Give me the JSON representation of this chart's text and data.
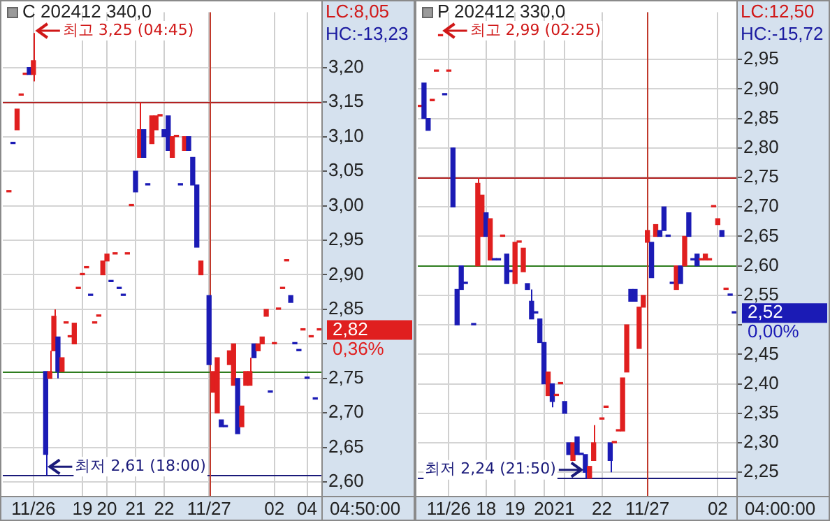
{
  "chart_data": [
    {
      "type": "candlestick",
      "title": "C 202412 340,0",
      "grid": true,
      "categories": [
        null,
        null,
        null,
        null,
        null,
        null,
        null,
        "11/26",
        null,
        null,
        null,
        null,
        null,
        null,
        null,
        null,
        null,
        null,
        null,
        "19",
        null,
        null,
        null,
        null,
        null,
        "20",
        null,
        null,
        null,
        null,
        null,
        null,
        "21",
        null,
        null,
        null,
        null,
        null,
        null,
        "22",
        null,
        null,
        null,
        null,
        null,
        null,
        null,
        null,
        null,
        null,
        "11/27",
        null,
        null,
        null,
        null,
        null,
        null,
        null,
        null,
        null,
        null,
        null,
        null,
        null,
        null,
        null,
        "02",
        null,
        null,
        null,
        null,
        null,
        null,
        null,
        "04",
        null,
        null,
        null
      ],
      "ohlc": [
        null,
        [
          3.02,
          3.02,
          3.02,
          3.02
        ],
        [
          3.09,
          3.09,
          3.09,
          3.09
        ],
        [
          3.11,
          3.14,
          3.11,
          3.14
        ],
        [
          3.16,
          3.16,
          3.16,
          3.16
        ],
        [
          3.19,
          3.19,
          3.19,
          3.19
        ],
        [
          3.2,
          3.2,
          3.19,
          3.19
        ],
        [
          3.19,
          3.25,
          3.18,
          3.21
        ],
        null,
        null,
        [
          2.76,
          2.76,
          2.61,
          2.64
        ],
        [
          2.75,
          2.79,
          2.75,
          2.76
        ],
        [
          2.79,
          2.85,
          2.79,
          2.84
        ],
        [
          2.81,
          2.81,
          2.75,
          2.76
        ],
        [
          2.76,
          2.78,
          2.76,
          2.78
        ],
        [
          2.83,
          2.83,
          2.83,
          2.83
        ],
        [
          2.81,
          2.81,
          2.81,
          2.81
        ],
        [
          2.8,
          2.83,
          2.8,
          2.83
        ],
        [
          2.88,
          2.88,
          2.88,
          2.88
        ],
        [
          2.9,
          2.9,
          2.9,
          2.9
        ],
        [
          2.91,
          2.91,
          2.91,
          2.91
        ],
        [
          2.87,
          2.87,
          2.87,
          2.87
        ],
        [
          2.83,
          2.83,
          2.83,
          2.83
        ],
        [
          2.84,
          2.84,
          2.84,
          2.84
        ],
        [
          2.9,
          2.92,
          2.9,
          2.92
        ],
        [
          2.92,
          2.93,
          2.92,
          2.93
        ],
        [
          2.89,
          2.89,
          2.89,
          2.89
        ],
        [
          2.93,
          2.93,
          2.93,
          2.93
        ],
        [
          2.88,
          2.88,
          2.88,
          2.88
        ],
        [
          2.87,
          2.87,
          2.87,
          2.87
        ],
        [
          2.93,
          2.93,
          2.93,
          2.93
        ],
        [
          3.0,
          3.0,
          3.0,
          3.0
        ],
        [
          3.05,
          3.05,
          3.02,
          3.02
        ],
        [
          3.07,
          3.15,
          3.07,
          3.11
        ],
        [
          3.11,
          3.11,
          3.07,
          3.07
        ],
        [
          3.03,
          3.03,
          3.03,
          3.03
        ],
        [
          3.09,
          3.13,
          3.09,
          3.13
        ],
        [
          3.11,
          3.13,
          3.11,
          3.13
        ],
        [
          3.13,
          3.13,
          3.13,
          3.13
        ],
        [
          3.11,
          3.11,
          3.1,
          3.1
        ],
        [
          3.13,
          3.13,
          3.08,
          3.08
        ],
        [
          3.07,
          3.1,
          3.07,
          3.1
        ],
        [
          3.1,
          3.1,
          3.1,
          3.1
        ],
        [
          3.03,
          3.03,
          3.03,
          3.03
        ],
        [
          3.08,
          3.1,
          3.08,
          3.1
        ],
        [
          3.1,
          3.1,
          3.08,
          3.08
        ],
        [
          3.07,
          3.07,
          3.03,
          3.03
        ],
        [
          3.03,
          3.03,
          2.94,
          2.94
        ],
        [
          2.9,
          2.92,
          2.9,
          2.92
        ],
        null,
        [
          2.87,
          2.87,
          2.77,
          2.77
        ],
        [
          2.73,
          2.76,
          2.73,
          2.76
        ],
        [
          2.7,
          2.78,
          2.7,
          2.78
        ],
        [
          2.69,
          2.69,
          2.68,
          2.68
        ],
        [
          2.68,
          2.68,
          2.68,
          2.68
        ],
        [
          2.77,
          2.79,
          2.77,
          2.79
        ],
        [
          2.74,
          2.8,
          2.74,
          2.8
        ],
        [
          2.75,
          2.75,
          2.67,
          2.67
        ],
        [
          2.68,
          2.71,
          2.68,
          2.71
        ],
        [
          2.74,
          2.76,
          2.74,
          2.76
        ],
        [
          2.74,
          2.78,
          2.74,
          2.76
        ],
        [
          2.8,
          2.8,
          2.78,
          2.78
        ],
        [
          2.79,
          2.8,
          2.79,
          2.8
        ],
        [
          2.8,
          2.81,
          2.8,
          2.81
        ],
        [
          2.84,
          2.85,
          2.84,
          2.85
        ],
        [
          2.73,
          2.73,
          2.73,
          2.73
        ],
        [
          2.8,
          2.8,
          2.8,
          2.8
        ],
        [
          2.85,
          2.85,
          2.85,
          2.85
        ],
        [
          2.88,
          2.88,
          2.88,
          2.88
        ],
        [
          2.92,
          2.92,
          2.92,
          2.92
        ],
        [
          2.87,
          2.87,
          2.86,
          2.86
        ],
        [
          2.8,
          2.8,
          2.8,
          2.8
        ],
        [
          2.79,
          2.79,
          2.79,
          2.79
        ],
        [
          2.82,
          2.82,
          2.82,
          2.82
        ],
        [
          2.75,
          2.75,
          2.75,
          2.75
        ],
        [
          2.81,
          2.81,
          2.81,
          2.81
        ],
        [
          2.72,
          2.72,
          2.72,
          2.72
        ],
        [
          2.82,
          2.82,
          2.82,
          2.82
        ]
      ],
      "colors": [
        null,
        "#e01f1f",
        "#1b1bb5",
        "#e01f1f",
        "#e01f1f",
        "#e01f1f",
        "#1b1bb5",
        "#e01f1f",
        null,
        null,
        "#1b1bb5",
        "#e01f1f",
        "#e01f1f",
        "#1b1bb5",
        "#e01f1f",
        "#e01f1f",
        "#e01f1f",
        "#e01f1f",
        "#e01f1f",
        "#e01f1f",
        "#e01f1f",
        "#1b1bb5",
        "#e01f1f",
        "#e01f1f",
        "#e01f1f",
        "#e01f1f",
        "#1b1bb5",
        "#e01f1f",
        "#1b1bb5",
        "#1b1bb5",
        "#e01f1f",
        "#e01f1f",
        "#1b1bb5",
        "#e01f1f",
        "#1b1bb5",
        "#1b1bb5",
        "#e01f1f",
        "#e01f1f",
        "#e01f1f",
        "#1b1bb5",
        "#1b1bb5",
        "#e01f1f",
        "#e01f1f",
        "#1b1bb5",
        "#e01f1f",
        "#1b1bb5",
        "#1b1bb5",
        "#1b1bb5",
        "#e01f1f",
        null,
        "#1b1bb5",
        "#e01f1f",
        "#e01f1f",
        "#1b1bb5",
        "#1b1bb5",
        "#e01f1f",
        "#e01f1f",
        "#1b1bb5",
        "#e01f1f",
        "#e01f1f",
        "#e01f1f",
        "#1b1bb5",
        "#e01f1f",
        "#e01f1f",
        "#e01f1f",
        "#1b1bb5",
        "#e01f1f",
        "#e01f1f",
        "#e01f1f",
        "#e01f1f",
        "#1b1bb5",
        "#1b1bb5",
        "#1b1bb5",
        "#e01f1f",
        "#1b1bb5",
        "#e01f1f",
        "#1b1bb5",
        "#e01f1f"
      ],
      "ylim": [
        2.58,
        3.28
      ],
      "yticks": [
        {
          "value": 2.6,
          "label": "2,60"
        },
        {
          "value": 2.65,
          "label": "2,65"
        },
        {
          "value": 2.7,
          "label": "2,70"
        },
        {
          "value": 2.75,
          "label": "2,75"
        },
        {
          "value": 2.8,
          "label": null
        },
        {
          "value": 2.85,
          "label": "2,85"
        },
        {
          "value": 2.9,
          "label": "2,90"
        },
        {
          "value": 2.95,
          "label": "2,95"
        },
        {
          "value": 3.0,
          "label": "3,00"
        },
        {
          "value": 3.05,
          "label": "3,05"
        },
        {
          "value": 3.1,
          "label": "3,10"
        },
        {
          "value": 3.15,
          "label": "3,15"
        },
        {
          "value": 3.2,
          "label": "3,20"
        }
      ],
      "ref_lines": [
        {
          "axis": "y",
          "value": 3.15,
          "color": "#b22222"
        },
        {
          "axis": "y",
          "value": 2.76,
          "color": "#2e7d1e"
        },
        {
          "axis": "y",
          "value": 2.61,
          "color": "#1a1a7a"
        },
        {
          "axis": "x",
          "value": "11/27",
          "color": "#c0392b"
        }
      ],
      "annotations": [
        "최고 3,25 (04:45)",
        "최저 2,61 (18:00)",
        "LC:8,05",
        "HC:-13,23",
        "2,82",
        "0,36%",
        "04:50:00"
      ]
    },
    {
      "type": "candlestick",
      "title": "P 202412 330,0",
      "grid": true,
      "categories": [
        null,
        null,
        null,
        null,
        null,
        null,
        null,
        "11/26",
        null,
        null,
        null,
        null,
        null,
        null,
        null,
        null,
        "18",
        null,
        null,
        null,
        null,
        null,
        null,
        "19",
        null,
        null,
        null,
        null,
        null,
        null,
        "20",
        null,
        null,
        null,
        null,
        "21",
        null,
        null,
        null,
        null,
        null,
        null,
        null,
        null,
        "22",
        null,
        null,
        null,
        null,
        null,
        null,
        null,
        null,
        null,
        null,
        "11/27",
        null,
        null,
        null,
        null,
        null,
        null,
        null,
        null,
        null,
        null,
        null,
        null,
        null,
        null,
        null,
        null,
        "02",
        null,
        null,
        null,
        null
      ],
      "ohlc": [
        [
          2.87,
          2.87,
          2.87,
          2.87
        ],
        [
          2.91,
          2.91,
          2.85,
          2.85
        ],
        [
          2.85,
          2.85,
          2.83,
          2.83
        ],
        [
          2.88,
          2.88,
          2.88,
          2.88
        ],
        [
          2.93,
          2.93,
          2.93,
          2.93
        ],
        [
          2.99,
          2.99,
          2.99,
          2.99
        ],
        [
          2.89,
          2.89,
          2.89,
          2.89
        ],
        [
          2.93,
          2.93,
          2.93,
          2.93
        ],
        [
          2.8,
          2.8,
          2.7,
          2.7
        ],
        [
          2.56,
          2.56,
          2.5,
          2.5
        ],
        [
          2.6,
          2.6,
          2.56,
          2.56
        ],
        [
          2.57,
          2.57,
          2.57,
          2.57
        ],
        null,
        [
          2.5,
          2.5,
          2.5,
          2.5
        ],
        [
          2.6,
          2.75,
          2.6,
          2.74
        ],
        [
          2.65,
          2.72,
          2.65,
          2.72
        ],
        [
          2.69,
          2.69,
          2.65,
          2.65
        ],
        [
          2.61,
          2.68,
          2.61,
          2.68
        ],
        [
          2.61,
          2.61,
          2.61,
          2.61
        ],
        [
          2.61,
          2.61,
          2.61,
          2.61
        ],
        [
          2.65,
          2.65,
          2.65,
          2.65
        ],
        [
          2.62,
          2.62,
          2.57,
          2.57
        ],
        [
          2.59,
          2.59,
          2.59,
          2.59
        ],
        [
          2.57,
          2.64,
          2.57,
          2.64
        ],
        [
          2.64,
          2.64,
          2.64,
          2.64
        ],
        [
          2.59,
          2.63,
          2.59,
          2.63
        ],
        [
          2.57,
          2.57,
          2.56,
          2.56
        ],
        [
          2.54,
          2.56,
          2.51,
          2.51
        ],
        [
          2.52,
          2.52,
          2.52,
          2.52
        ],
        [
          2.51,
          2.51,
          2.47,
          2.47
        ],
        [
          2.47,
          2.47,
          2.4,
          2.4
        ],
        [
          2.38,
          2.42,
          2.38,
          2.42
        ],
        [
          2.4,
          2.4,
          2.36,
          2.37
        ],
        [
          2.38,
          2.38,
          2.38,
          2.38
        ],
        [
          2.4,
          2.4,
          2.4,
          2.4
        ],
        [
          2.37,
          2.37,
          2.35,
          2.35
        ],
        [
          2.3,
          2.3,
          2.28,
          2.28
        ],
        [
          2.27,
          2.3,
          2.27,
          2.3
        ],
        [
          2.31,
          2.31,
          2.28,
          2.28
        ],
        [
          2.28,
          2.28,
          2.28,
          2.28
        ],
        [
          2.28,
          2.28,
          2.24,
          2.25
        ],
        [
          2.24,
          2.26,
          2.24,
          2.26
        ],
        [
          2.27,
          2.33,
          2.27,
          2.3
        ],
        null,
        [
          2.34,
          2.34,
          2.34,
          2.34
        ],
        [
          2.36,
          2.36,
          2.36,
          2.36
        ],
        [
          2.3,
          2.3,
          2.25,
          2.27
        ],
        [
          2.3,
          2.3,
          2.3,
          2.3
        ],
        [
          2.32,
          2.32,
          2.32,
          2.32
        ],
        [
          2.32,
          2.41,
          2.32,
          2.41
        ],
        [
          2.42,
          2.5,
          2.42,
          2.5
        ],
        [
          2.56,
          2.56,
          2.54,
          2.54
        ],
        [
          2.56,
          2.56,
          2.54,
          2.54
        ],
        [
          2.46,
          2.53,
          2.46,
          2.53
        ],
        [
          2.53,
          2.55,
          2.53,
          2.55
        ],
        [
          2.64,
          2.66,
          2.64,
          2.66
        ],
        [
          2.64,
          2.64,
          2.58,
          2.58
        ],
        [
          2.65,
          2.67,
          2.65,
          2.67
        ],
        [
          2.66,
          2.66,
          2.65,
          2.65
        ],
        [
          2.7,
          2.7,
          2.66,
          2.66
        ],
        [
          2.65,
          2.65,
          2.65,
          2.65
        ],
        [
          2.57,
          2.57,
          2.57,
          2.57
        ],
        [
          2.56,
          2.6,
          2.56,
          2.6
        ],
        [
          2.6,
          2.6,
          2.57,
          2.57
        ],
        [
          2.6,
          2.65,
          2.6,
          2.65
        ],
        [
          2.69,
          2.69,
          2.65,
          2.65
        ],
        [
          2.61,
          2.61,
          2.61,
          2.61
        ],
        [
          2.62,
          2.62,
          2.6,
          2.6
        ],
        [
          2.61,
          2.61,
          2.61,
          2.61
        ],
        [
          2.61,
          2.62,
          2.61,
          2.62
        ],
        [
          2.61,
          2.61,
          2.61,
          2.61
        ],
        [
          2.7,
          2.7,
          2.7,
          2.7
        ],
        [
          2.67,
          2.68,
          2.67,
          2.68
        ],
        [
          2.66,
          2.66,
          2.65,
          2.65
        ],
        [
          2.56,
          2.56,
          2.56,
          2.56
        ],
        [
          2.55,
          2.55,
          2.55,
          2.55
        ],
        [
          2.52,
          2.52,
          2.52,
          2.52
        ]
      ],
      "colors": [
        "#e01f1f",
        "#1b1bb5",
        "#1b1bb5",
        "#e01f1f",
        "#e01f1f",
        "#e01f1f",
        "#1b1bb5",
        "#e01f1f",
        "#1b1bb5",
        "#1b1bb5",
        "#1b1bb5",
        "#1b1bb5",
        null,
        "#1b1bb5",
        "#e01f1f",
        "#e01f1f",
        "#1b1bb5",
        "#e01f1f",
        "#1b1bb5",
        "#1b1bb5",
        "#e01f1f",
        "#1b1bb5",
        "#1b1bb5",
        "#e01f1f",
        "#e01f1f",
        "#e01f1f",
        "#1b1bb5",
        "#1b1bb5",
        "#1b1bb5",
        "#1b1bb5",
        "#1b1bb5",
        "#e01f1f",
        "#1b1bb5",
        "#e01f1f",
        "#e01f1f",
        "#1b1bb5",
        "#1b1bb5",
        "#e01f1f",
        "#1b1bb5",
        "#1b1bb5",
        "#1b1bb5",
        "#e01f1f",
        "#e01f1f",
        null,
        "#e01f1f",
        "#e01f1f",
        "#1b1bb5",
        "#e01f1f",
        "#e01f1f",
        "#e01f1f",
        "#e01f1f",
        "#1b1bb5",
        "#1b1bb5",
        "#e01f1f",
        "#e01f1f",
        "#e01f1f",
        "#1b1bb5",
        "#e01f1f",
        "#1b1bb5",
        "#1b1bb5",
        "#1b1bb5",
        "#1b1bb5",
        "#e01f1f",
        "#1b1bb5",
        "#e01f1f",
        "#1b1bb5",
        "#1b1bb5",
        "#1b1bb5",
        "#e01f1f",
        "#e01f1f",
        "#e01f1f",
        "#e01f1f",
        "#e01f1f",
        "#1b1bb5",
        "#e01f1f",
        "#1b1bb5",
        "#1b1bb5"
      ],
      "ylim": [
        2.21,
        3.03
      ],
      "yticks": [
        {
          "value": 2.25,
          "label": "2,25"
        },
        {
          "value": 2.3,
          "label": "2,30"
        },
        {
          "value": 2.35,
          "label": "2,35"
        },
        {
          "value": 2.4,
          "label": "2,40"
        },
        {
          "value": 2.45,
          "label": "2,45"
        },
        {
          "value": 2.5,
          "label": null
        },
        {
          "value": 2.55,
          "label": "2,55"
        },
        {
          "value": 2.6,
          "label": "2,60"
        },
        {
          "value": 2.65,
          "label": "2,65"
        },
        {
          "value": 2.7,
          "label": "2,70"
        },
        {
          "value": 2.75,
          "label": "2,75"
        },
        {
          "value": 2.8,
          "label": "2,80"
        },
        {
          "value": 2.85,
          "label": "2,85"
        },
        {
          "value": 2.9,
          "label": "2,90"
        },
        {
          "value": 2.95,
          "label": "2,95"
        }
      ],
      "ref_lines": [
        {
          "axis": "y",
          "value": 2.75,
          "color": "#b22222"
        },
        {
          "axis": "y",
          "value": 2.6,
          "color": "#2e7d1e"
        },
        {
          "axis": "y",
          "value": 2.24,
          "color": "#1a1a7a"
        },
        {
          "axis": "x",
          "value": "11/27",
          "color": "#c0392b"
        }
      ],
      "annotations": [
        "최고 2,99 (02:25)",
        "최저 2,24 (21:50)",
        "LC:12,50",
        "HC:-15,72",
        "2,52",
        "0,00%",
        "04:00:00"
      ]
    }
  ]
}
